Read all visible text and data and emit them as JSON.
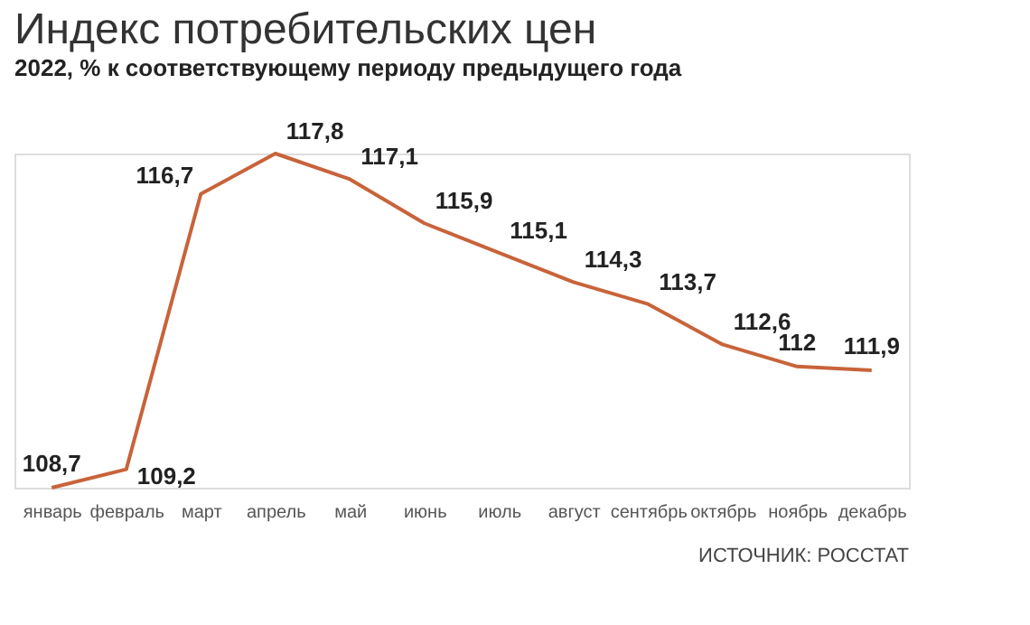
{
  "chart_data": {
    "type": "line",
    "title": "Индекс потребительских цен",
    "subtitle": "2022, % к соответствующему периоду предыдущего года",
    "categories": [
      "январь",
      "февраль",
      "март",
      "апрель",
      "май",
      "июнь",
      "июль",
      "август",
      "сентябрь",
      "октябрь",
      "ноябрь",
      "декабрь"
    ],
    "series": [
      {
        "color": "#c8633a",
        "values": [
          108.7,
          109.2,
          116.7,
          117.8,
          117.1,
          115.9,
          115.1,
          114.3,
          113.7,
          112.6,
          112,
          111.9
        ],
        "value_labels": [
          "108,7",
          "109,2",
          "116,7",
          "117,8",
          "117,1",
          "115,9",
          "115,1",
          "114,3",
          "113,7",
          "112,6",
          "112",
          "111,9"
        ]
      }
    ],
    "annotations": [
      "ИСТОЧНИК: РОССТАТ"
    ],
    "grid": false,
    "tick_labels": "x",
    "line_style": "solid"
  }
}
